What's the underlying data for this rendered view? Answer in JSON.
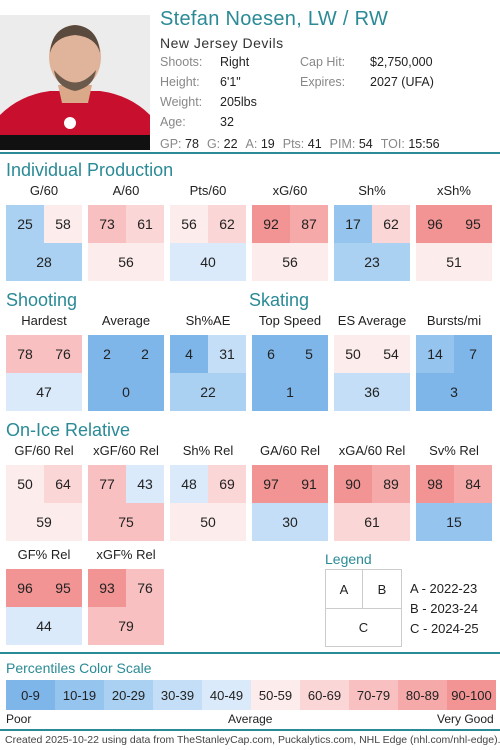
{
  "player": {
    "name": "Stefan Noesen, LW / RW",
    "team": "New Jersey Devils",
    "info": [
      {
        "label": "Shoots:",
        "value": "Right"
      },
      {
        "label": "Height:",
        "value": "6'1\""
      },
      {
        "label": "Weight:",
        "value": "205lbs"
      },
      {
        "label": "Age:",
        "value": "32"
      }
    ],
    "contract": [
      {
        "label": "Cap Hit:",
        "value": "$2,750,000"
      },
      {
        "label": "Expires:",
        "value": "2027 (UFA)"
      }
    ],
    "statline": [
      {
        "label": "GP:",
        "value": "78"
      },
      {
        "label": "G:",
        "value": "22"
      },
      {
        "label": "A:",
        "value": "19"
      },
      {
        "label": "Pts:",
        "value": "41"
      },
      {
        "label": "PIM:",
        "value": "54"
      },
      {
        "label": "TOI:",
        "value": "15:56"
      }
    ]
  },
  "sections": {
    "individual": "Individual Production",
    "shooting": "Shooting",
    "skating": "Skating",
    "onice": "On-Ice Relative"
  },
  "cards": [
    {
      "title": "G/60",
      "a": 25,
      "b": 58,
      "c": 28
    },
    {
      "title": "A/60",
      "a": 73,
      "b": 61,
      "c": 56
    },
    {
      "title": "Pts/60",
      "a": 56,
      "b": 62,
      "c": 40
    },
    {
      "title": "xG/60",
      "a": 92,
      "b": 87,
      "c": 56
    },
    {
      "title": "Sh%",
      "a": 17,
      "b": 62,
      "c": 23
    },
    {
      "title": "xSh%",
      "a": 96,
      "b": 95,
      "c": 51
    },
    {
      "title": "Hardest",
      "a": 78,
      "b": 76,
      "c": 47
    },
    {
      "title": "Average",
      "a": 2,
      "b": 2,
      "c": 0
    },
    {
      "title": "Sh%AE",
      "a": 4,
      "b": 31,
      "c": 22
    },
    {
      "title": "Top Speed",
      "a": 6,
      "b": 5,
      "c": 1
    },
    {
      "title": "ES Average",
      "a": 50,
      "b": 54,
      "c": 36
    },
    {
      "title": "Bursts/mi",
      "a": 14,
      "b": 7,
      "c": 3
    },
    {
      "title": "GF/60 Rel",
      "a": 50,
      "b": 64,
      "c": 59
    },
    {
      "title": "xGF/60 Rel",
      "a": 77,
      "b": 43,
      "c": 75
    },
    {
      "title": "Sh% Rel",
      "a": 48,
      "b": 69,
      "c": 50
    },
    {
      "title": "GA/60 Rel",
      "a": 97,
      "b": 91,
      "c": 30
    },
    {
      "title": "xGA/60 Rel",
      "a": 90,
      "b": 89,
      "c": 61
    },
    {
      "title": "Sv% Rel",
      "a": 98,
      "b": 84,
      "c": 15
    },
    {
      "title": "GF% Rel",
      "a": 96,
      "b": 95,
      "c": 44
    },
    {
      "title": "xGF% Rel",
      "a": 93,
      "b": 76,
      "c": 79
    }
  ],
  "legend": {
    "title": "Legend",
    "a": "A",
    "b": "B",
    "c": "C",
    "a_text": "A - 2022-23",
    "b_text": "B - 2023-24",
    "c_text": "C - 2024-25"
  },
  "scale": {
    "title": "Percentiles Color Scale",
    "bins": [
      "0-9",
      "10-19",
      "20-29",
      "30-39",
      "40-49",
      "50-59",
      "60-69",
      "70-79",
      "80-89",
      "90-100"
    ],
    "colors": [
      "#7eb6ea",
      "#95c4ee",
      "#abd1f2",
      "#c3def6",
      "#dbeafa",
      "#fdecec",
      "#fbd6d6",
      "#f8c0c0",
      "#f5a9a9",
      "#f29494"
    ],
    "poor": "Poor",
    "average": "Average",
    "very_good": "Very Good"
  },
  "footer": "Created 2025-10-22 using data from TheStanleyCap.com, Puckalytics.com, NHL Edge (nhl.com/nhl-edge)."
}
